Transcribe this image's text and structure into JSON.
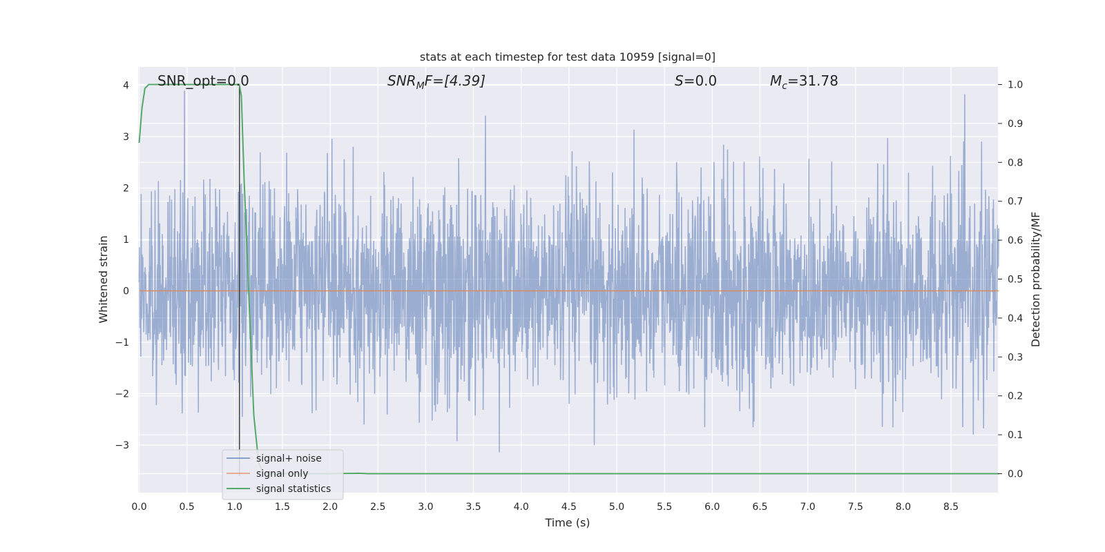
{
  "chart_data": {
    "type": "line",
    "title": "stats at each timestep for test data 10959 [signal=0]",
    "xlabel": "Time (s)",
    "ylabel": "Whitened strain",
    "y2label": "Detection probability/MF",
    "xlim": [
      0,
      9
    ],
    "ylim": [
      -3.9,
      4.4
    ],
    "y2lim": [
      -0.05,
      1.05
    ],
    "xticks": [
      "0.0",
      "0.5",
      "1.0",
      "1.5",
      "2.0",
      "2.5",
      "3.0",
      "3.5",
      "4.0",
      "4.5",
      "5.0",
      "5.5",
      "6.0",
      "6.5",
      "7.0",
      "7.5",
      "8.0",
      "8.5"
    ],
    "yticks": [
      "−3",
      "−2",
      "−1",
      "0",
      "1",
      "2",
      "3",
      "4"
    ],
    "y2ticks": [
      "0.0",
      "0.1",
      "0.2",
      "0.3",
      "0.4",
      "0.5",
      "0.6",
      "0.7",
      "0.8",
      "0.9",
      "1.0"
    ],
    "grid": true,
    "background": "#eaeaf2",
    "annotations": {
      "snr_opt": "SNR_opt=0.0",
      "snr_mf_main": "SNR",
      "snr_mf_sub": "M",
      "snr_mf_rest": "F=[4.39]",
      "s_main": "S",
      "s_rest": "=0.0",
      "mc_main": "M",
      "mc_sub": "c",
      "mc_rest": "=31.78"
    },
    "legend": {
      "placement": "lower-left",
      "entries": [
        "signal+ noise",
        "signal only",
        "signal statistics"
      ]
    },
    "series": [
      {
        "name": "signal+ noise",
        "color": "#4c72b0",
        "alpha": 0.5,
        "kind": "noise",
        "typical_amplitude": 1.0,
        "range": [
          -3.5,
          4.0
        ],
        "x_start": 0.0,
        "x_end": 9.0
      },
      {
        "name": "signal only",
        "color": "#dd8452",
        "x": [
          0.0,
          9.0
        ],
        "y": [
          0.0,
          0.0
        ]
      },
      {
        "name": "signal statistics",
        "color": "#55a868",
        "axis": "right",
        "x": [
          0.0,
          0.03,
          0.06,
          0.1,
          0.2,
          0.5,
          0.8,
          1.0,
          1.05,
          1.07,
          1.1,
          1.15,
          1.2,
          1.25,
          1.3,
          1.5,
          2.0,
          2.3,
          2.4,
          3.0,
          5.0,
          7.0,
          9.0
        ],
        "y": [
          0.85,
          0.94,
          0.99,
          1.0,
          1.0,
          1.0,
          1.0,
          1.0,
          1.0,
          0.97,
          0.75,
          0.45,
          0.15,
          0.03,
          0.0,
          0.0,
          0.0,
          0.001,
          0.0,
          0.0,
          0.0,
          0.0,
          0.0
        ]
      },
      {
        "name": "",
        "color": "#404040",
        "kind": "vline",
        "x": 1.05,
        "y": [
          -3.6,
          4.0
        ]
      }
    ]
  }
}
